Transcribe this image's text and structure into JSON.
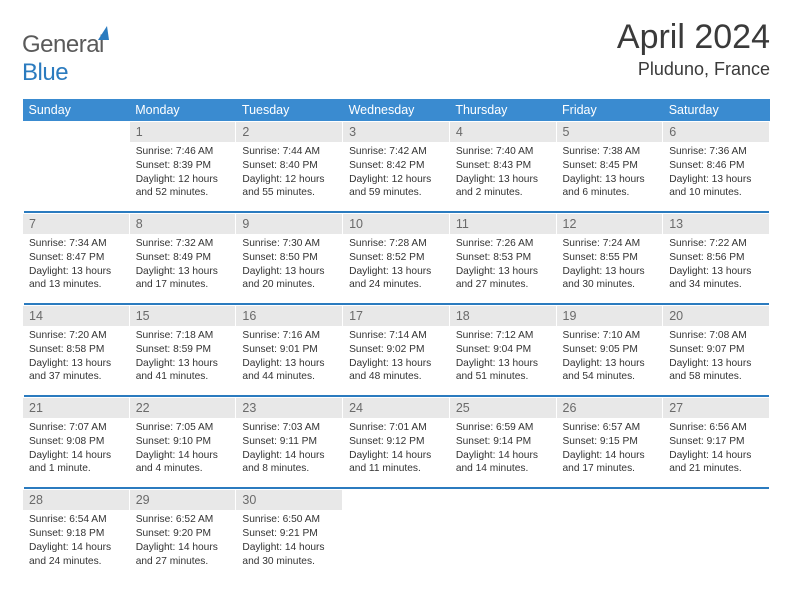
{
  "brand": {
    "part1": "General",
    "part2": "Blue"
  },
  "title": "April 2024",
  "location": "Pluduno, France",
  "dow": [
    "Sunday",
    "Monday",
    "Tuesday",
    "Wednesday",
    "Thursday",
    "Friday",
    "Saturday"
  ],
  "colors": {
    "header_bg": "#3a8bd0",
    "header_text": "#ffffff",
    "daynum_bg": "#e8e8e8",
    "daynum_text": "#6a6a6a",
    "rule": "#2b7bbf",
    "body_text": "#333333",
    "page_bg": "#ffffff"
  },
  "fonts": {
    "title_size_pt": 26,
    "location_size_pt": 14,
    "dow_size_pt": 9.5,
    "daynum_size_pt": 9.5,
    "cell_size_pt": 7.7
  },
  "layout": {
    "cols": 7,
    "rows": 5,
    "leading_blanks": 1,
    "trailing_blanks": 4
  },
  "days": [
    {
      "n": 1,
      "sunrise": "7:46 AM",
      "sunset": "8:39 PM",
      "daylight": "12 hours and 52 minutes."
    },
    {
      "n": 2,
      "sunrise": "7:44 AM",
      "sunset": "8:40 PM",
      "daylight": "12 hours and 55 minutes."
    },
    {
      "n": 3,
      "sunrise": "7:42 AM",
      "sunset": "8:42 PM",
      "daylight": "12 hours and 59 minutes."
    },
    {
      "n": 4,
      "sunrise": "7:40 AM",
      "sunset": "8:43 PM",
      "daylight": "13 hours and 2 minutes."
    },
    {
      "n": 5,
      "sunrise": "7:38 AM",
      "sunset": "8:45 PM",
      "daylight": "13 hours and 6 minutes."
    },
    {
      "n": 6,
      "sunrise": "7:36 AM",
      "sunset": "8:46 PM",
      "daylight": "13 hours and 10 minutes."
    },
    {
      "n": 7,
      "sunrise": "7:34 AM",
      "sunset": "8:47 PM",
      "daylight": "13 hours and 13 minutes."
    },
    {
      "n": 8,
      "sunrise": "7:32 AM",
      "sunset": "8:49 PM",
      "daylight": "13 hours and 17 minutes."
    },
    {
      "n": 9,
      "sunrise": "7:30 AM",
      "sunset": "8:50 PM",
      "daylight": "13 hours and 20 minutes."
    },
    {
      "n": 10,
      "sunrise": "7:28 AM",
      "sunset": "8:52 PM",
      "daylight": "13 hours and 24 minutes."
    },
    {
      "n": 11,
      "sunrise": "7:26 AM",
      "sunset": "8:53 PM",
      "daylight": "13 hours and 27 minutes."
    },
    {
      "n": 12,
      "sunrise": "7:24 AM",
      "sunset": "8:55 PM",
      "daylight": "13 hours and 30 minutes."
    },
    {
      "n": 13,
      "sunrise": "7:22 AM",
      "sunset": "8:56 PM",
      "daylight": "13 hours and 34 minutes."
    },
    {
      "n": 14,
      "sunrise": "7:20 AM",
      "sunset": "8:58 PM",
      "daylight": "13 hours and 37 minutes."
    },
    {
      "n": 15,
      "sunrise": "7:18 AM",
      "sunset": "8:59 PM",
      "daylight": "13 hours and 41 minutes."
    },
    {
      "n": 16,
      "sunrise": "7:16 AM",
      "sunset": "9:01 PM",
      "daylight": "13 hours and 44 minutes."
    },
    {
      "n": 17,
      "sunrise": "7:14 AM",
      "sunset": "9:02 PM",
      "daylight": "13 hours and 48 minutes."
    },
    {
      "n": 18,
      "sunrise": "7:12 AM",
      "sunset": "9:04 PM",
      "daylight": "13 hours and 51 minutes."
    },
    {
      "n": 19,
      "sunrise": "7:10 AM",
      "sunset": "9:05 PM",
      "daylight": "13 hours and 54 minutes."
    },
    {
      "n": 20,
      "sunrise": "7:08 AM",
      "sunset": "9:07 PM",
      "daylight": "13 hours and 58 minutes."
    },
    {
      "n": 21,
      "sunrise": "7:07 AM",
      "sunset": "9:08 PM",
      "daylight": "14 hours and 1 minute."
    },
    {
      "n": 22,
      "sunrise": "7:05 AM",
      "sunset": "9:10 PM",
      "daylight": "14 hours and 4 minutes."
    },
    {
      "n": 23,
      "sunrise": "7:03 AM",
      "sunset": "9:11 PM",
      "daylight": "14 hours and 8 minutes."
    },
    {
      "n": 24,
      "sunrise": "7:01 AM",
      "sunset": "9:12 PM",
      "daylight": "14 hours and 11 minutes."
    },
    {
      "n": 25,
      "sunrise": "6:59 AM",
      "sunset": "9:14 PM",
      "daylight": "14 hours and 14 minutes."
    },
    {
      "n": 26,
      "sunrise": "6:57 AM",
      "sunset": "9:15 PM",
      "daylight": "14 hours and 17 minutes."
    },
    {
      "n": 27,
      "sunrise": "6:56 AM",
      "sunset": "9:17 PM",
      "daylight": "14 hours and 21 minutes."
    },
    {
      "n": 28,
      "sunrise": "6:54 AM",
      "sunset": "9:18 PM",
      "daylight": "14 hours and 24 minutes."
    },
    {
      "n": 29,
      "sunrise": "6:52 AM",
      "sunset": "9:20 PM",
      "daylight": "14 hours and 27 minutes."
    },
    {
      "n": 30,
      "sunrise": "6:50 AM",
      "sunset": "9:21 PM",
      "daylight": "14 hours and 30 minutes."
    }
  ],
  "labels": {
    "sunrise": "Sunrise:",
    "sunset": "Sunset:",
    "daylight": "Daylight:"
  }
}
